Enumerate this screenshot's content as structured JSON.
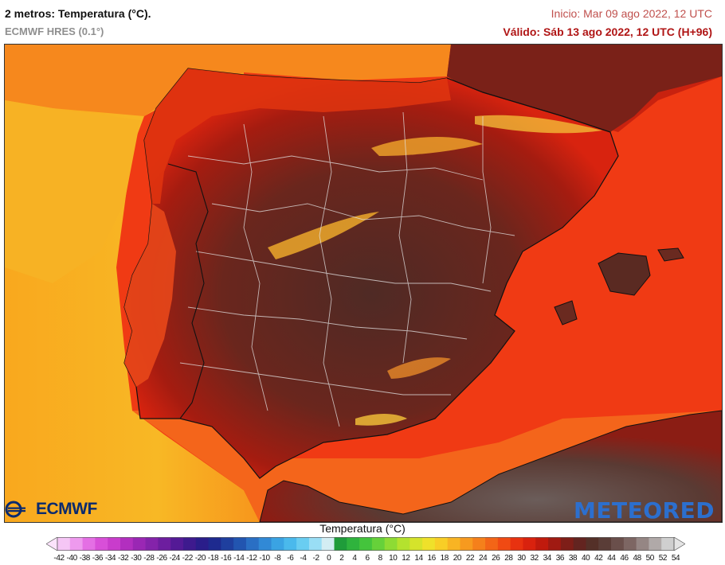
{
  "header": {
    "title": "2 metros: Temperatura (°C).",
    "model": "ECMWF HRES (0.1°)",
    "init": "Inicio: Mar 09 ago 2022, 12 UTC",
    "valid": "Válido: Sáb 13 ago 2022, 12 UTC (H+96)"
  },
  "logos": {
    "ecmwf": "ECMWF",
    "meteored": "METEORED"
  },
  "legend": {
    "title": "Temperatura (°C)",
    "ticks": [
      "-42",
      "-40",
      "-38",
      "-36",
      "-34",
      "-32",
      "-30",
      "-28",
      "-26",
      "-24",
      "-22",
      "-20",
      "-18",
      "-16",
      "-14",
      "-12",
      "-10",
      "-8",
      "-6",
      "-4",
      "-2",
      "0",
      "2",
      "4",
      "6",
      "8",
      "10",
      "12",
      "14",
      "16",
      "18",
      "20",
      "22",
      "24",
      "26",
      "28",
      "30",
      "32",
      "34",
      "36",
      "38",
      "40",
      "42",
      "44",
      "46",
      "48",
      "50",
      "52",
      "54"
    ],
    "colors": [
      "#f5c6f5",
      "#ee9aee",
      "#e46fe4",
      "#d84fd8",
      "#c93ccc",
      "#b22fbf",
      "#9a27b4",
      "#8423aa",
      "#6d1e9f",
      "#541a96",
      "#3e1a8e",
      "#2a1d8a",
      "#1e2a8f",
      "#1f3f9e",
      "#2255b0",
      "#2a6fc4",
      "#3189d6",
      "#3aa3e3",
      "#4ab9ec",
      "#69cdf1",
      "#99def5",
      "#d3edf3",
      "#1f9c3a",
      "#2fb33d",
      "#44c43c",
      "#66d13a",
      "#8edb34",
      "#b4e22e",
      "#d5e32b",
      "#efe12a",
      "#f8ce26",
      "#f8b423",
      "#f79a1f",
      "#f5801b",
      "#f36517",
      "#f04a13",
      "#e83210",
      "#d9220e",
      "#c01a0d",
      "#a01a12",
      "#7e1e18",
      "#632420",
      "#543028",
      "#5a3d37",
      "#6a4f4b",
      "#7d6663",
      "#958684",
      "#b0a9a8",
      "#cfcfcf"
    ]
  }
}
